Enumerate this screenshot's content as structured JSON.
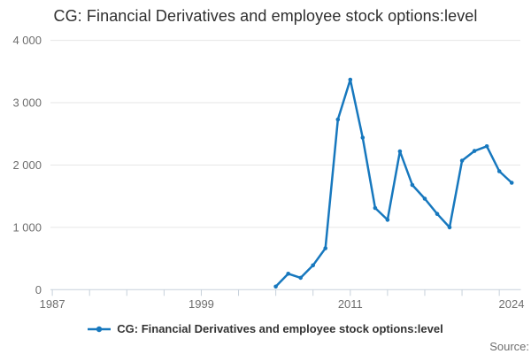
{
  "title": "CG: Financial Derivatives and employee stock options:level",
  "legend": {
    "label": "CG: Financial Derivatives and employee stock options:level"
  },
  "source": {
    "label": "Source:"
  },
  "colors": {
    "line": "#1778be",
    "marker": "#1778be",
    "grid": "#e6e6e6",
    "axis": "#c7d1db",
    "tick_label": "#6f6f6f",
    "title_text": "#2f2f2f",
    "legend_text": "#333333",
    "source_text": "#6f6f6f",
    "background": "#ffffff"
  },
  "chart_data": {
    "type": "line",
    "title": "CG: Financial Derivatives and employee stock options:level",
    "xlabel": "",
    "ylabel": "",
    "x": [
      2005,
      2006,
      2007,
      2008,
      2009,
      2010,
      2011,
      2012,
      2013,
      2014,
      2015,
      2016,
      2017,
      2018,
      2019,
      2020,
      2021,
      2022,
      2023,
      2024
    ],
    "series": [
      {
        "name": "CG: Financial Derivatives and employee stock options:level",
        "values": [
          50,
          255,
          190,
          390,
          665,
          2730,
          3370,
          2440,
          1310,
          1120,
          2220,
          1680,
          1460,
          1215,
          1000,
          2070,
          2225,
          2300,
          1900,
          1715
        ]
      }
    ],
    "xlim": [
      1986.85,
      2024.7
    ],
    "ylim": [
      0,
      4000
    ],
    "y_ticks": [
      {
        "value": 0,
        "label": "0"
      },
      {
        "value": 1000,
        "label": "1 000"
      },
      {
        "value": 2000,
        "label": "2 000"
      },
      {
        "value": 3000,
        "label": "3 000"
      },
      {
        "value": 4000,
        "label": "4 000"
      }
    ],
    "x_minor_ticks": {
      "start": 1987,
      "end": 2023,
      "interval": 3
    },
    "x_tick_labels": [
      {
        "year": 1987,
        "label": "1987"
      },
      {
        "year": 1999,
        "label": "1999"
      },
      {
        "year": 2011,
        "label": "2011"
      },
      {
        "year": 2024,
        "label": "2024"
      }
    ],
    "grid": "horizontal",
    "legend_position": "bottom",
    "marker": "circle"
  }
}
